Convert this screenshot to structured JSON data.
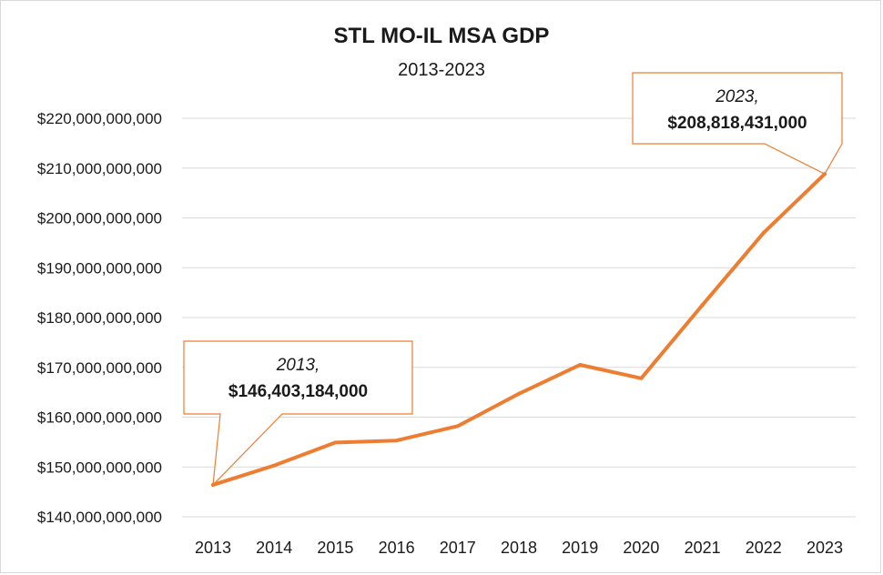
{
  "chart_data": {
    "type": "line",
    "title": "STL MO-IL MSA GDP",
    "subtitle": "2013-2023",
    "xlabel": "",
    "ylabel": "",
    "ylim": [
      140000000000,
      220000000000
    ],
    "grid": true,
    "x": [
      "2013",
      "2014",
      "2015",
      "2016",
      "2017",
      "2018",
      "2019",
      "2020",
      "2021",
      "2022",
      "2023"
    ],
    "series": [
      {
        "values": [
          146403184000,
          150300000000,
          154900000000,
          155300000000,
          158200000000,
          164700000000,
          170500000000,
          167800000000,
          182500000000,
          197000000000,
          208818431000
        ]
      }
    ],
    "y_ticks": [
      "$140,000,000,000",
      "$150,000,000,000",
      "$160,000,000,000",
      "$170,000,000,000",
      "$180,000,000,000",
      "$190,000,000,000",
      "$200,000,000,000",
      "$210,000,000,000",
      "$220,000,000,000"
    ],
    "annotations": [
      {
        "year_label": "2013,",
        "value_label": "$146,403,184,000"
      },
      {
        "year_label": "2023,",
        "value_label": "$208,818,431,000"
      }
    ],
    "colors": {
      "line": "#ed7d31",
      "grid": "#d9d9d9"
    }
  }
}
